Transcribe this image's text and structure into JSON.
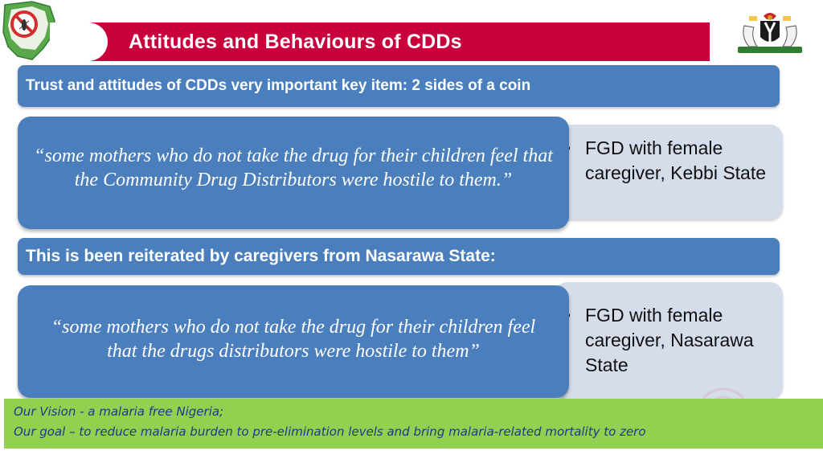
{
  "slide": {
    "title": "Attitudes and Behaviours of CDDs"
  },
  "logos": {
    "left": "nigeria-map-no-mosquito-logo",
    "right": "nigeria-coat-of-arms"
  },
  "section1": {
    "header": "Trust and attitudes of CDDs very important key item: 2 sides of a coin",
    "quote": "“some mothers who do not take the drug for their children feel that the Community Drug Distributors were hostile to them.”",
    "attribution": "FGD with female caregiver, Kebbi State"
  },
  "section2": {
    "header": "This is been reiterated by caregivers from Nasarawa State:",
    "quote": "“some mothers who do not take the drug for their children feel that the drugs distributors were hostile to them”",
    "attribution": "FGD with female caregiver, Nasarawa State"
  },
  "footer": {
    "vision": "Our Vision - a malaria free Nigeria;",
    "goal": "Our goal – to reduce malaria burden to pre-elimination levels and bring malaria-related mortality to zero"
  },
  "colors": {
    "title_band": "#c8003c",
    "box_blue": "#4a7ebc",
    "attribution_bg": "#d5dcea",
    "footer_green": "#92d050",
    "footer_text": "#1a3a8a"
  }
}
